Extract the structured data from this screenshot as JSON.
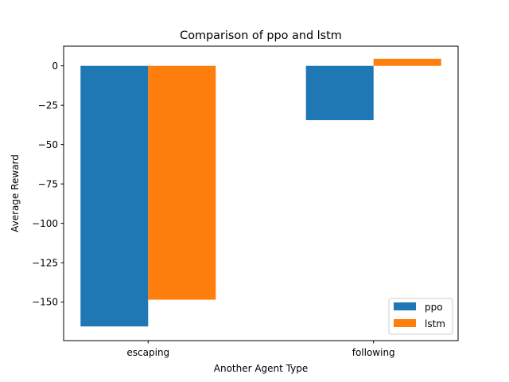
{
  "chart_data": {
    "type": "bar",
    "title": "Comparison of ppo and lstm",
    "xlabel": "Another Agent Type",
    "ylabel": "Average Reward",
    "categories": [
      "escaping",
      "following"
    ],
    "series": [
      {
        "name": "ppo",
        "values": [
          -165.5,
          -34.5
        ],
        "color": "#1f77b4"
      },
      {
        "name": "lstm",
        "values": [
          -148.5,
          4.5
        ],
        "color": "#ff7f0e"
      }
    ],
    "ylim": [
      -174.5,
      12.5
    ],
    "yticks": [
      0,
      -25,
      -50,
      -75,
      -100,
      -125,
      -150
    ],
    "ytick_labels": [
      "0",
      "−25",
      "−50",
      "−75",
      "−100",
      "−125",
      "−150"
    ],
    "grid": false,
    "legend_position": "lower right"
  }
}
